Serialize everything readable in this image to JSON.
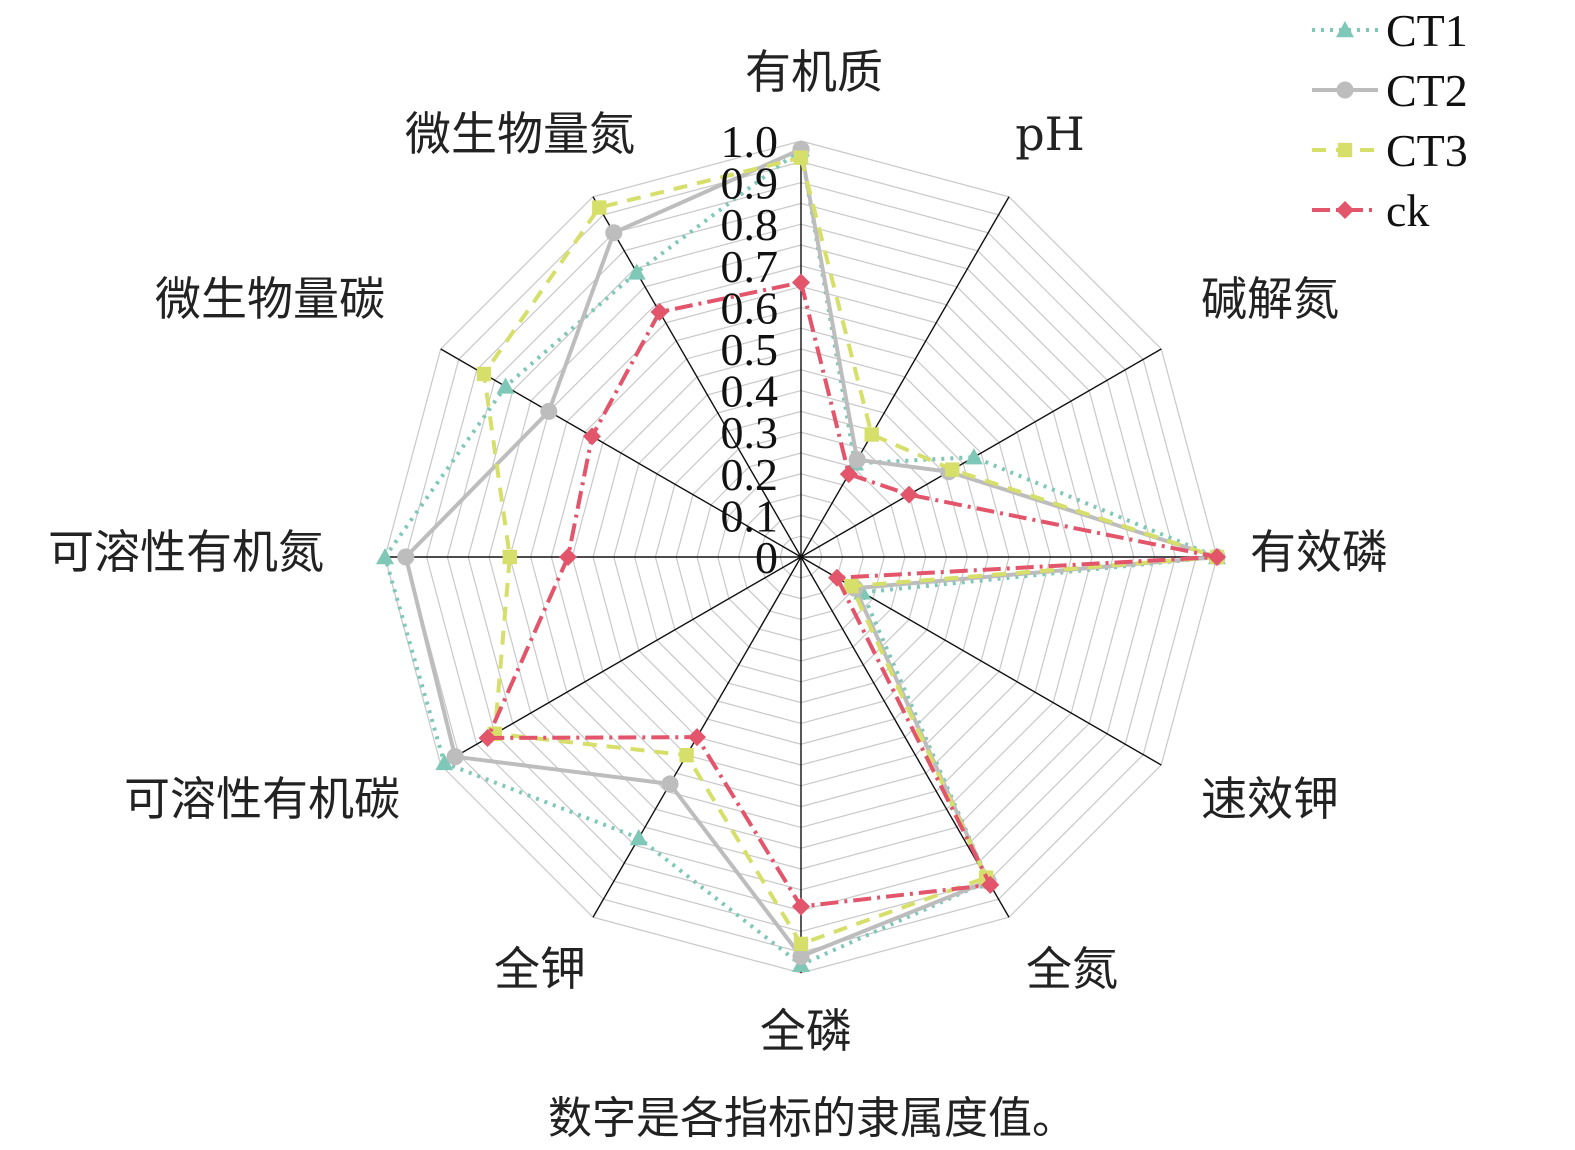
{
  "chart_data": {
    "type": "radar",
    "title": "",
    "caption": "数字是各指标的隶属度值。",
    "axes": [
      "有机质",
      "pH",
      "碱解氮",
      "有效磷",
      "速效钾",
      "全氮",
      "全磷",
      "全钾",
      "可溶性有机碳",
      "可溶性有机氮",
      "微生物量碳",
      "微生物量氮"
    ],
    "r_ticks": [
      "0",
      "0.1",
      "0.2",
      "0.3",
      "0.4",
      "0.5",
      "0.6",
      "0.7",
      "0.8",
      "0.9",
      "1.0"
    ],
    "r_range": [
      0,
      1
    ],
    "grid": true,
    "legend_position": "top-right",
    "colors": {
      "grid": "#c8c8c8",
      "spoke": "#111111"
    },
    "series": [
      {
        "name": "CT1",
        "color": "#7fc8b8",
        "dash": "3,6",
        "marker": "triangle",
        "values": [
          0.98,
          0.26,
          0.48,
          1.0,
          0.17,
          0.9,
          0.98,
          0.78,
          0.99,
          1.0,
          0.82,
          0.79
        ]
      },
      {
        "name": "CT2",
        "color": "#bdbdbd",
        "dash": "",
        "marker": "circle",
        "values": [
          0.98,
          0.27,
          0.41,
          1.0,
          0.15,
          0.9,
          0.96,
          0.63,
          0.96,
          0.95,
          0.7,
          0.9
        ]
      },
      {
        "name": "CT3",
        "color": "#d6df6a",
        "dash": "14,10",
        "marker": "square",
        "values": [
          0.96,
          0.34,
          0.42,
          1.0,
          0.14,
          0.89,
          0.93,
          0.55,
          0.85,
          0.7,
          0.88,
          0.97
        ]
      },
      {
        "name": "ck",
        "color": "#e2556b",
        "dash": "18,6,3,6",
        "marker": "diamond",
        "values": [
          0.66,
          0.23,
          0.3,
          1.0,
          0.1,
          0.91,
          0.84,
          0.5,
          0.87,
          0.56,
          0.58,
          0.68
        ]
      }
    ]
  }
}
